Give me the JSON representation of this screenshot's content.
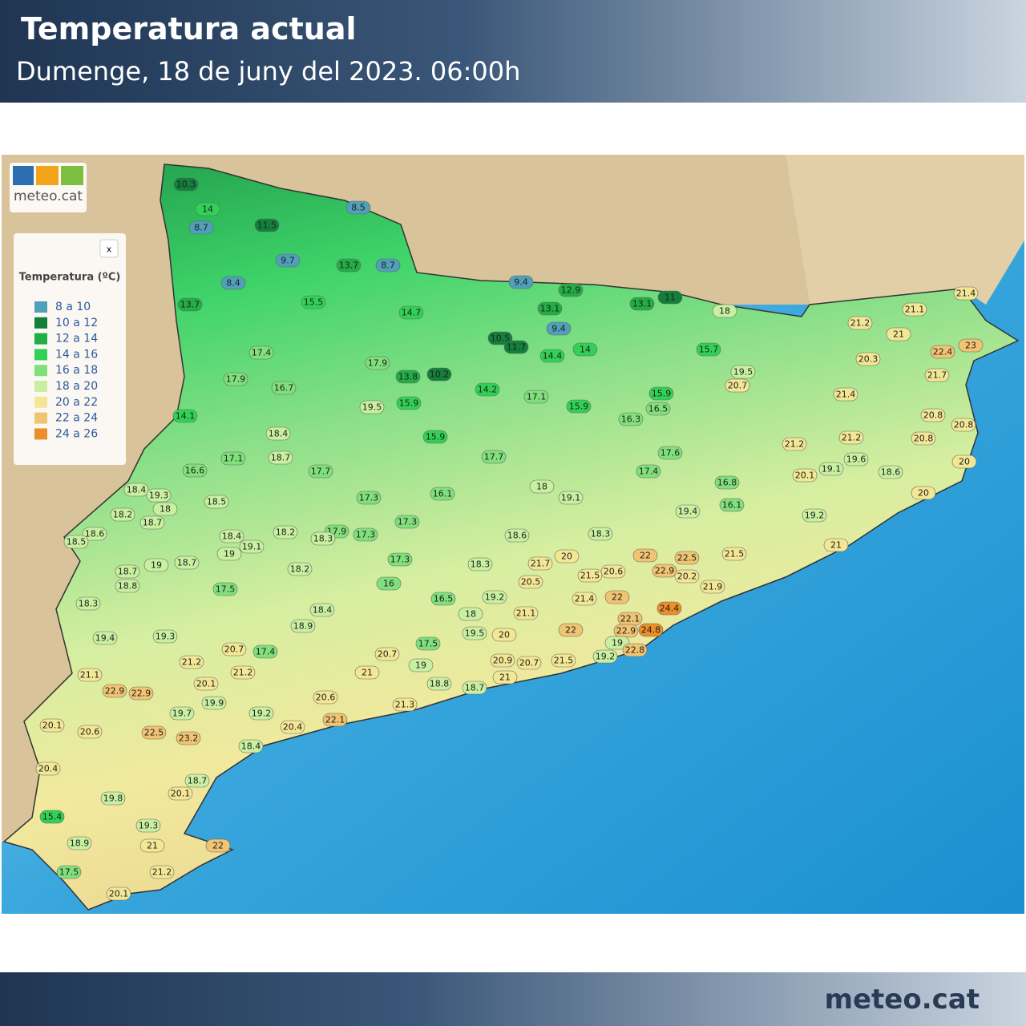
{
  "header": {
    "title": "Temperatura actual",
    "subtitle": "Dumenge, 18 de juny del 2023. 06:00h"
  },
  "logo": "meteo.cat",
  "footer": {
    "brand": "meteo.cat"
  },
  "legend": {
    "title": "Temperatura (ºC)",
    "close": "x",
    "items": [
      {
        "label": "8 a 10",
        "range": [
          8,
          10
        ],
        "color": "#4fa0b8"
      },
      {
        "label": "10 a 12",
        "range": [
          10,
          12
        ],
        "color": "#12803a"
      },
      {
        "label": "12 a 14",
        "range": [
          12,
          14
        ],
        "color": "#22ad45"
      },
      {
        "label": "14 a 16",
        "range": [
          14,
          16
        ],
        "color": "#30d255"
      },
      {
        "label": "16 a 18",
        "range": [
          16,
          18
        ],
        "color": "#80e07c"
      },
      {
        "label": "18 a 20",
        "range": [
          18,
          20
        ],
        "color": "#c9f0a0"
      },
      {
        "label": "20 a 22",
        "range": [
          20,
          22
        ],
        "color": "#f3e795"
      },
      {
        "label": "22 a 24",
        "range": [
          22,
          24
        ],
        "color": "#f0c472"
      },
      {
        "label": "24 a 26",
        "range": [
          24,
          26
        ],
        "color": "#ec8f2a"
      }
    ]
  },
  "stations": [
    10.3,
    14,
    8.7,
    8.5,
    11.5,
    9.7,
    13.7,
    8.7,
    8.4,
    9.4,
    12.9,
    13.7,
    15.5,
    14.7,
    13.1,
    13.1,
    11,
    18,
    21.4,
    21.1,
    21.2,
    21,
    9.4,
    10.5,
    11.7,
    14.4,
    14,
    15.7,
    22.4,
    23,
    20.3,
    17.4,
    17.9,
    13.8,
    10.2,
    19.5,
    21.7,
    17.9,
    16.7,
    20.7,
    14.2,
    17.1,
    15.9,
    21.4,
    19.5,
    15.9,
    15.9,
    16.5,
    14.1,
    16.3,
    20.8,
    20.8,
    18.4,
    15.9,
    21.2,
    20.8,
    21.2,
    17.1,
    18.7,
    17.7,
    17.6,
    19.6,
    19.1,
    20.1,
    20,
    18.6,
    16.6,
    17.7,
    17.4,
    18,
    16.8,
    18.4,
    19.3,
    18.5,
    16.1,
    17.3,
    19.1,
    20,
    18,
    18.2,
    16.1,
    19.4,
    18.7,
    17.3,
    19.2,
    18.6,
    18.5,
    18.2,
    17.9,
    18.4,
    17.3,
    18.3,
    18.6,
    18.3,
    19.1,
    21,
    19,
    17.3,
    21.7,
    20,
    22,
    22.5,
    21.5,
    18.7,
    19,
    18.3,
    18.2,
    18.7,
    18.8,
    16,
    20.5,
    21.5,
    20.6,
    22.9,
    20.2,
    21.9,
    17.5,
    16.5,
    19.2,
    21.4,
    22,
    18.3,
    18.4,
    18,
    21.1,
    24.4,
    22.1,
    18.9,
    22,
    22.9,
    24.8,
    19.4,
    19.3,
    19.5,
    20,
    19,
    17.5,
    20.7,
    17.4,
    20.7,
    22.8,
    19.2,
    20.9,
    20.7,
    21.5,
    21.2,
    19,
    21,
    21.2,
    21.1,
    21,
    18.8,
    18.7,
    20.1,
    22.9,
    22.9,
    19.9,
    20.6,
    21.3,
    19.7,
    19.2,
    22.1,
    20.1,
    20.6,
    22.5,
    23.2,
    20.4,
    18.4,
    20.4,
    18.7,
    19.8,
    20.1,
    15.4,
    19.3,
    18.9,
    21,
    22,
    21.2,
    17.5,
    20.1
  ]
}
